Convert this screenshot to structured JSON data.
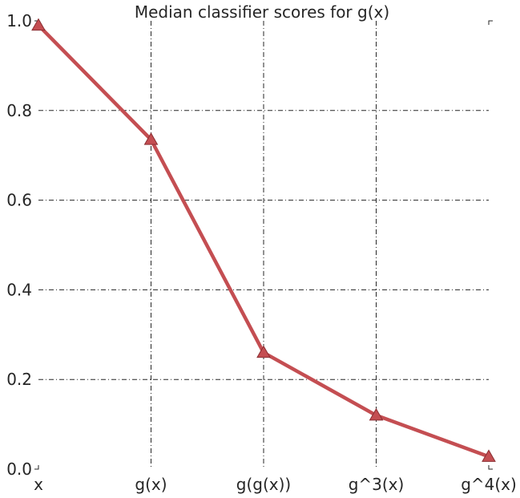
{
  "chart_data": {
    "type": "line",
    "title": "Median classifier scores for g(x)",
    "xlabel": "",
    "ylabel": "",
    "categories": [
      "x",
      "g(x)",
      "g(g(x))",
      "g^3(x)",
      "g^4(x)"
    ],
    "series": [
      {
        "values": [
          0.99,
          0.735,
          0.26,
          0.12,
          0.028
        ],
        "color": "#c44e52",
        "marker": "triangle"
      }
    ],
    "ylim": [
      0.0,
      1.0
    ],
    "yticks": [
      0.0,
      0.2,
      0.4,
      0.6,
      0.8,
      1.0
    ],
    "ytick_labels": [
      "0.0",
      "0.2",
      "0.4",
      "0.6",
      "0.8",
      "1.0"
    ],
    "grid": true,
    "grid_style": "dash-dot",
    "grid_color": "#262626",
    "background": "#ffffff"
  }
}
